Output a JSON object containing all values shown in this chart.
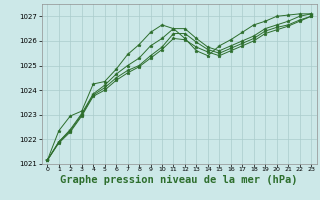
{
  "background_color": "#cce8e8",
  "grid_color": "#aacccc",
  "line_color": "#2d6e2d",
  "marker": "*",
  "xlabel": "Graphe pression niveau de la mer (hPa)",
  "xlabel_fontsize": 7.5,
  "ylim": [
    1021,
    1027.5
  ],
  "xlim": [
    -0.5,
    23.5
  ],
  "yticks": [
    1021,
    1022,
    1023,
    1024,
    1025,
    1026,
    1027
  ],
  "xticks": [
    0,
    1,
    2,
    3,
    4,
    5,
    6,
    7,
    8,
    9,
    10,
    11,
    12,
    13,
    14,
    15,
    16,
    17,
    18,
    19,
    20,
    21,
    22,
    23
  ],
  "series": [
    [
      1021.15,
      1021.9,
      1022.4,
      1023.05,
      1023.85,
      1024.2,
      1024.65,
      1025.0,
      1025.3,
      1025.8,
      1026.1,
      1026.5,
      1026.5,
      1026.1,
      1025.75,
      1025.6,
      1025.8,
      1026.0,
      1026.2,
      1026.5,
      1026.65,
      1026.8,
      1027.0,
      1027.1
    ],
    [
      1021.15,
      1021.9,
      1022.35,
      1023.0,
      1023.8,
      1024.1,
      1024.5,
      1024.8,
      1025.0,
      1025.4,
      1025.75,
      1026.3,
      1026.3,
      1025.95,
      1025.65,
      1025.5,
      1025.7,
      1025.9,
      1026.1,
      1026.4,
      1026.55,
      1026.65,
      1026.85,
      1027.0
    ],
    [
      1021.15,
      1021.85,
      1022.3,
      1022.95,
      1023.75,
      1024.0,
      1024.4,
      1024.7,
      1024.95,
      1025.3,
      1025.65,
      1026.1,
      1026.05,
      1025.75,
      1025.55,
      1025.4,
      1025.6,
      1025.8,
      1026.0,
      1026.3,
      1026.45,
      1026.6,
      1026.8,
      1027.0
    ],
    [
      1021.15,
      1022.35,
      1022.95,
      1023.15,
      1024.25,
      1024.35,
      1024.85,
      1025.45,
      1025.85,
      1026.35,
      1026.65,
      1026.5,
      1026.1,
      1025.6,
      1025.4,
      1025.8,
      1026.05,
      1026.35,
      1026.65,
      1026.8,
      1027.0,
      1027.05,
      1027.1,
      1027.1
    ]
  ]
}
